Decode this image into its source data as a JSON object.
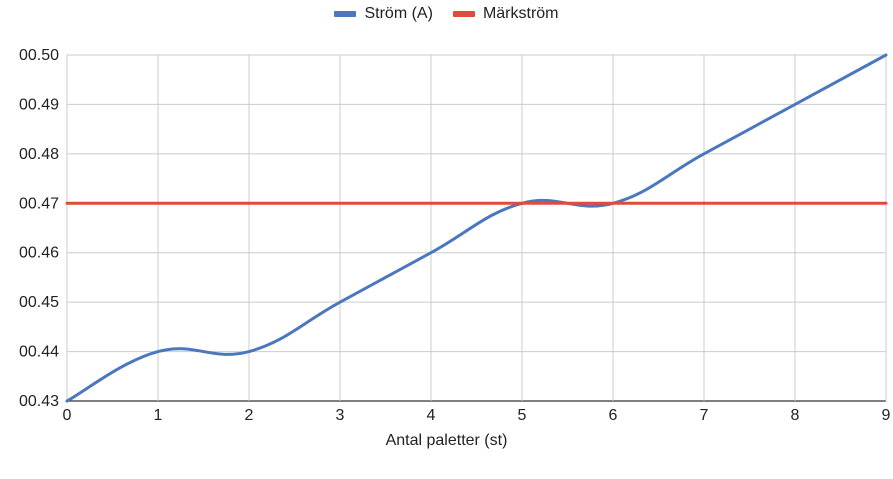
{
  "chart_data": {
    "type": "line",
    "title": "",
    "xlabel": "Antal paletter (st)",
    "ylabel": "",
    "x": [
      0,
      1,
      2,
      3,
      4,
      5,
      6,
      7,
      8,
      9
    ],
    "x_tick_labels": [
      "0",
      "1",
      "2",
      "3",
      "4",
      "5",
      "6",
      "7",
      "8",
      "9"
    ],
    "y_tick_labels": [
      "00.43",
      "00.44",
      "00.45",
      "00.46",
      "00.47",
      "00.48",
      "00.49",
      "00.50"
    ],
    "y_ticks": [
      0.43,
      0.44,
      0.45,
      0.46,
      0.47,
      0.48,
      0.49,
      0.5
    ],
    "xlim": [
      0,
      9
    ],
    "ylim": [
      0.43,
      0.5
    ],
    "grid": true,
    "legend_position": "top-center",
    "series": [
      {
        "name": "Ström (A)",
        "color": "#4a77bd",
        "smooth": true,
        "values": [
          0.43,
          0.44,
          0.44,
          0.45,
          0.46,
          0.47,
          0.47,
          0.48,
          0.49,
          0.5
        ]
      },
      {
        "name": "Märkström",
        "color": "#e04a3f",
        "smooth": false,
        "values": [
          0.47,
          0.47,
          0.47,
          0.47,
          0.47,
          0.47,
          0.47,
          0.47,
          0.47,
          0.47
        ]
      }
    ]
  }
}
